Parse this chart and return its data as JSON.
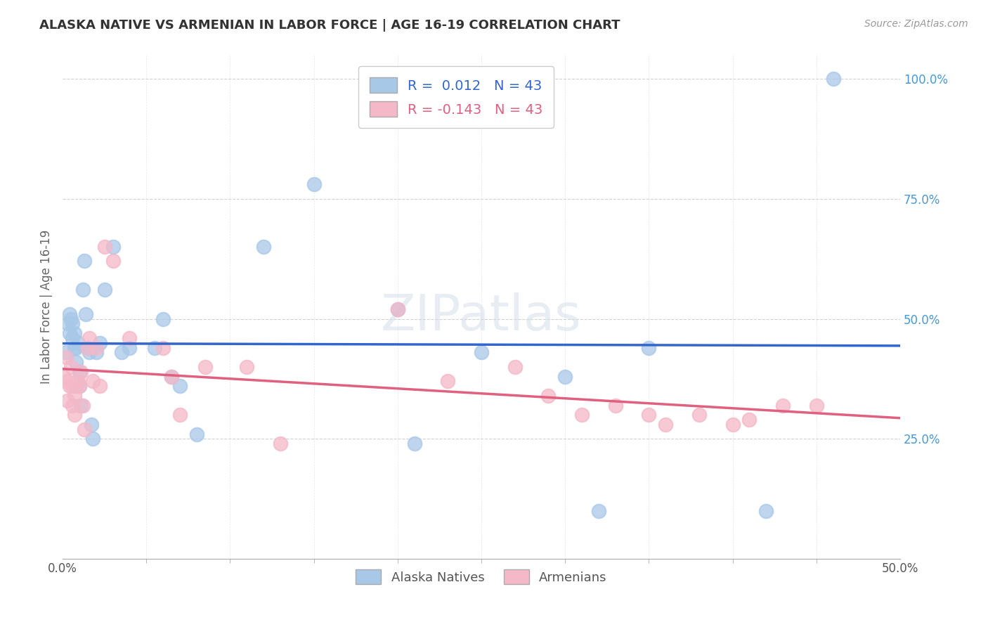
{
  "title": "ALASKA NATIVE VS ARMENIAN IN LABOR FORCE | AGE 16-19 CORRELATION CHART",
  "source": "Source: ZipAtlas.com",
  "ylabel": "In Labor Force | Age 16-19",
  "xlim": [
    0.0,
    0.5
  ],
  "ylim": [
    0.0,
    1.05
  ],
  "xtick_major": [
    0.0,
    0.5
  ],
  "xticklabels_major": [
    "0.0%",
    "50.0%"
  ],
  "xtick_minor": [
    0.05,
    0.1,
    0.15,
    0.2,
    0.25,
    0.3,
    0.35,
    0.4,
    0.45
  ],
  "yticks": [
    0.0,
    0.25,
    0.5,
    0.75,
    1.0
  ],
  "yticklabels": [
    "",
    "25.0%",
    "50.0%",
    "75.0%",
    "100.0%"
  ],
  "legend_labels": [
    "Alaska Natives",
    "Armenians"
  ],
  "r_alaska": 0.012,
  "r_armenian": -0.143,
  "n_alaska": 43,
  "n_armenian": 43,
  "color_alaska": "#a8c8e8",
  "color_armenian": "#f4b8c8",
  "color_line_alaska": "#3366cc",
  "color_line_armenian": "#e06080",
  "color_ytick": "#4499dd",
  "background_color": "#ffffff",
  "alaska_x": [
    0.002,
    0.003,
    0.004,
    0.004,
    0.005,
    0.006,
    0.006,
    0.007,
    0.007,
    0.008,
    0.008,
    0.009,
    0.01,
    0.01,
    0.011,
    0.012,
    0.013,
    0.014,
    0.015,
    0.016,
    0.017,
    0.018,
    0.02,
    0.022,
    0.025,
    0.03,
    0.035,
    0.04,
    0.055,
    0.06,
    0.065,
    0.07,
    0.08,
    0.12,
    0.15,
    0.2,
    0.21,
    0.25,
    0.3,
    0.32,
    0.35,
    0.42,
    0.46
  ],
  "alaska_y": [
    0.43,
    0.49,
    0.51,
    0.47,
    0.5,
    0.49,
    0.46,
    0.44,
    0.47,
    0.41,
    0.44,
    0.45,
    0.39,
    0.36,
    0.32,
    0.56,
    0.62,
    0.51,
    0.44,
    0.43,
    0.28,
    0.25,
    0.43,
    0.45,
    0.56,
    0.65,
    0.43,
    0.44,
    0.44,
    0.5,
    0.38,
    0.36,
    0.26,
    0.65,
    0.78,
    0.52,
    0.24,
    0.43,
    0.38,
    0.1,
    0.44,
    0.1,
    1.0
  ],
  "armenian_x": [
    0.001,
    0.002,
    0.003,
    0.003,
    0.004,
    0.005,
    0.006,
    0.006,
    0.007,
    0.007,
    0.008,
    0.009,
    0.01,
    0.011,
    0.012,
    0.013,
    0.015,
    0.016,
    0.018,
    0.02,
    0.022,
    0.025,
    0.03,
    0.04,
    0.06,
    0.065,
    0.07,
    0.085,
    0.11,
    0.13,
    0.2,
    0.23,
    0.27,
    0.29,
    0.31,
    0.33,
    0.35,
    0.36,
    0.38,
    0.4,
    0.41,
    0.43,
    0.45
  ],
  "armenian_y": [
    0.38,
    0.42,
    0.37,
    0.33,
    0.36,
    0.4,
    0.36,
    0.32,
    0.3,
    0.34,
    0.36,
    0.37,
    0.36,
    0.39,
    0.32,
    0.27,
    0.44,
    0.46,
    0.37,
    0.44,
    0.36,
    0.65,
    0.62,
    0.46,
    0.44,
    0.38,
    0.3,
    0.4,
    0.4,
    0.24,
    0.52,
    0.37,
    0.4,
    0.34,
    0.3,
    0.32,
    0.3,
    0.28,
    0.3,
    0.28,
    0.29,
    0.32,
    0.32
  ]
}
